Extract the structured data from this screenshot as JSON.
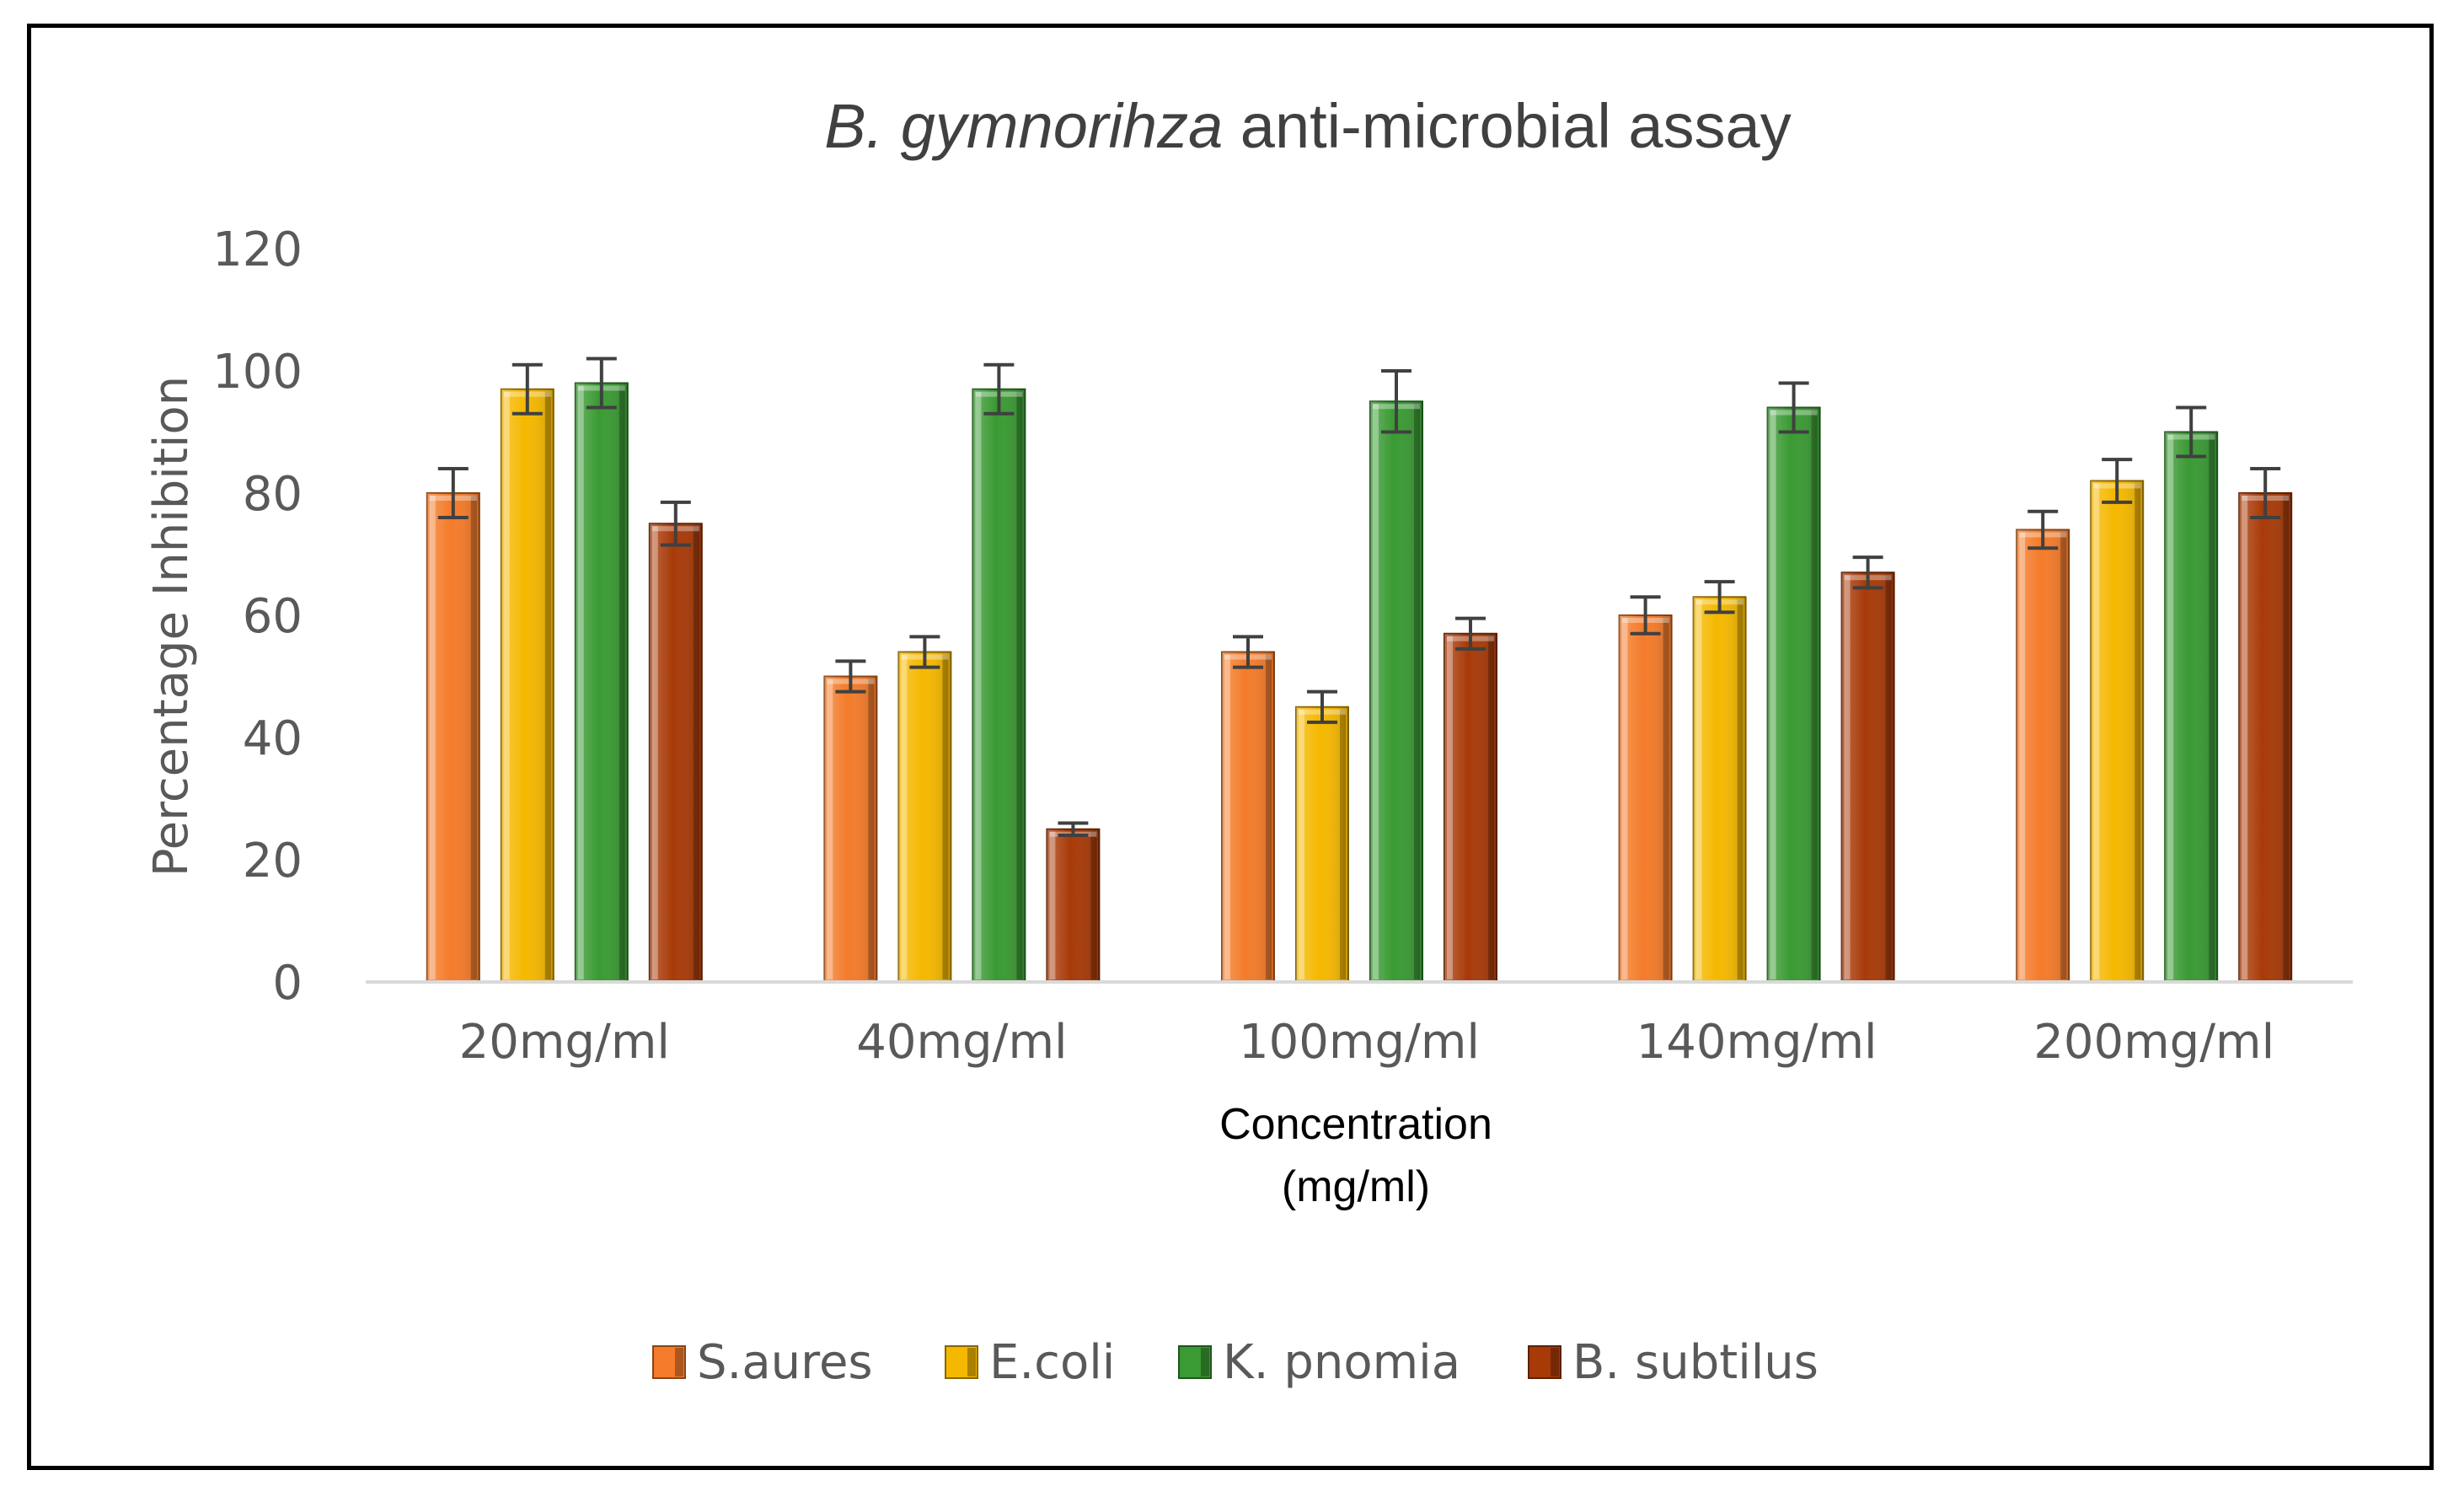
{
  "chart_data": {
    "type": "bar",
    "title_italic": "B. gymnorihza",
    "title_rest": " anti-microbial assay",
    "xlabel_line1": "Concentration",
    "xlabel_line2": "(mg/ml)",
    "ylabel": "Percentage Inhibition",
    "ylim": [
      0,
      120
    ],
    "yticks": [
      0,
      20,
      40,
      60,
      80,
      100,
      120
    ],
    "ytick_labels": [
      "0",
      "20",
      "40",
      "60",
      "80",
      "100",
      "120"
    ],
    "grid": false,
    "legend_position": "bottom",
    "categories": [
      "20mg/ml",
      "40mg/ml",
      "100mg/ml",
      "140mg/ml",
      "200mg/ml"
    ],
    "series": [
      {
        "name": "S.aures",
        "color": "#F47B2A",
        "values": [
          80,
          50,
          54,
          60,
          74
        ],
        "errors": [
          4,
          2.5,
          2.5,
          3,
          3
        ]
      },
      {
        "name": "E.coli",
        "color": "#F5B800",
        "values": [
          97,
          54,
          45,
          63,
          82
        ],
        "errors": [
          4,
          2.5,
          2.5,
          2.5,
          3.5
        ]
      },
      {
        "name": "K. pnomia",
        "color": "#3A9A33",
        "values": [
          98,
          97,
          95,
          94,
          90
        ],
        "errors": [
          4,
          4,
          5,
          4,
          4
        ]
      },
      {
        "name": "B. subtilus",
        "color": "#A83A08",
        "values": [
          75,
          25,
          57,
          67,
          80
        ],
        "errors": [
          3.5,
          1,
          2.5,
          2.5,
          4
        ]
      }
    ]
  }
}
